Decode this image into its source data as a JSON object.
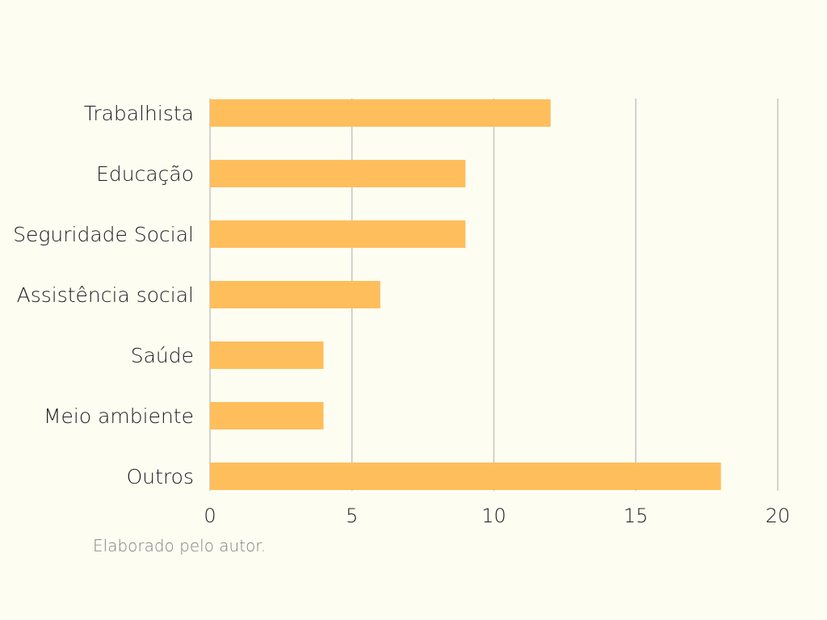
{
  "chart_data": {
    "type": "bar",
    "orientation": "horizontal",
    "title": "",
    "xlabel": "",
    "ylabel": "",
    "categories": [
      "Trabalhista",
      "Educação",
      "Seguridade Social",
      "Assistência social",
      "Saúde",
      "Meio ambiente",
      "Outros"
    ],
    "values": [
      12,
      9,
      9,
      6,
      4,
      4,
      18
    ],
    "xlim": [
      0,
      20
    ],
    "xticks": [
      "0",
      "5",
      "10",
      "15",
      "20"
    ],
    "grid": "vertical",
    "legend": "none",
    "bar_color": "#ffbe5c",
    "grid_color": "#c6c6c2",
    "background_color": "#fdfdf2"
  },
  "source_note": "Elaborado pelo autor."
}
